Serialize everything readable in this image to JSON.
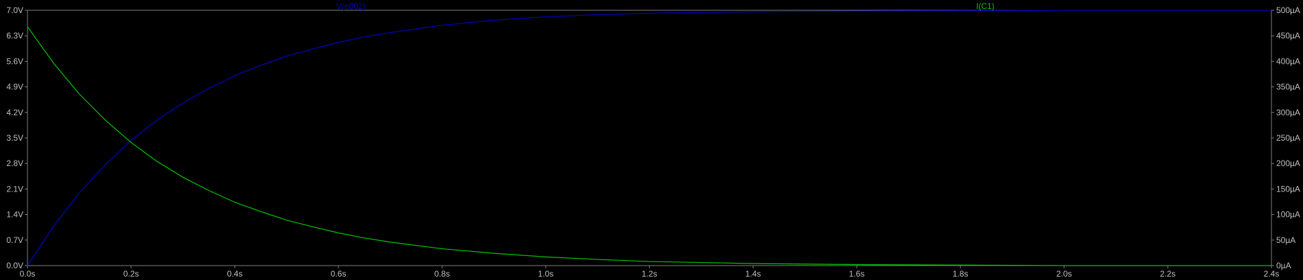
{
  "chart_data": {
    "type": "line",
    "title": "",
    "xlabel": "",
    "ylabel": "",
    "y2label": "",
    "grid": false,
    "colors": {
      "background": "#000000",
      "axis": "#808080",
      "tick_text": "#c0c0c0",
      "voltage": "#0000c8",
      "current": "#00c800"
    },
    "x_ticks": [
      "0.0s",
      "0.2s",
      "0.4s",
      "0.6s",
      "0.8s",
      "1.0s",
      "1.2s",
      "1.4s",
      "1.6s",
      "1.8s",
      "2.0s",
      "2.2s",
      "2.4s"
    ],
    "xlim": [
      0,
      2.4
    ],
    "y_left_ticks": [
      "0.0V",
      "0.7V",
      "1.4V",
      "2.1V",
      "2.8V",
      "3.5V",
      "4.2V",
      "4.9V",
      "5.6V",
      "6.3V",
      "7.0V"
    ],
    "ylim_left": [
      0,
      7
    ],
    "y_right_ticks": [
      "0µA",
      "50µA",
      "100µA",
      "150µA",
      "200µA",
      "250µA",
      "300µA",
      "350µA",
      "400µA",
      "450µA",
      "500µA"
    ],
    "ylim_right": [
      0,
      500
    ],
    "series": [
      {
        "name": "V(n002)",
        "axis": "left",
        "unit": "V",
        "x": [
          0,
          0.05,
          0.1,
          0.15,
          0.2,
          0.25,
          0.3,
          0.35,
          0.4,
          0.45,
          0.5,
          0.55,
          0.6,
          0.65,
          0.7,
          0.8,
          0.9,
          1.0,
          1.1,
          1.2,
          1.3,
          1.4,
          1.5,
          1.6,
          1.8,
          2.0,
          2.2,
          2.4
        ],
        "values": [
          0.0,
          1.07,
          1.99,
          2.77,
          3.43,
          3.99,
          4.46,
          4.86,
          5.21,
          5.49,
          5.74,
          5.94,
          6.12,
          6.27,
          6.39,
          6.59,
          6.73,
          6.82,
          6.88,
          6.92,
          6.94,
          6.96,
          6.97,
          6.98,
          6.99,
          7.0,
          7.0,
          7.0
        ]
      },
      {
        "name": "I(C1)",
        "axis": "right",
        "unit": "µA",
        "x": [
          0,
          0.05,
          0.1,
          0.15,
          0.2,
          0.25,
          0.3,
          0.35,
          0.4,
          0.45,
          0.5,
          0.55,
          0.6,
          0.65,
          0.7,
          0.8,
          0.9,
          1.0,
          1.1,
          1.2,
          1.3,
          1.4,
          1.5,
          1.6,
          1.8,
          2.0,
          2.2,
          2.4
        ],
        "values": [
          468,
          397,
          336,
          285,
          241,
          204,
          173,
          147,
          124,
          106,
          89,
          76,
          64,
          54,
          46,
          33,
          24,
          17,
          12,
          8,
          6,
          4,
          3,
          2,
          1,
          0,
          0,
          0
        ]
      }
    ]
  }
}
